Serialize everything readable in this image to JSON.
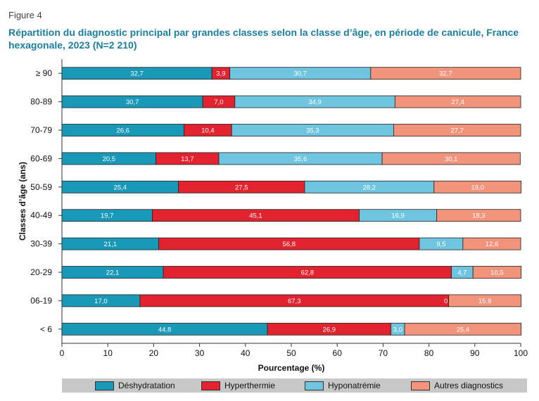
{
  "figure_label": "Figure 4",
  "chart_data": {
    "type": "bar",
    "orientation": "horizontal",
    "stacked": true,
    "title": "Répartition du diagnostic principal par grandes classes selon la classe d’âge, en période de canicule, France hexagonale, 2023 (N=2 210)",
    "xlabel": "Pourcentage (%)",
    "ylabel": "Classes d’âge (ans)",
    "xlim": [
      0,
      100
    ],
    "xticks": [
      "0",
      "10",
      "20",
      "30",
      "40",
      "50",
      "60",
      "70",
      "80",
      "90",
      "100"
    ],
    "categories": [
      "≥ 90",
      "80-89",
      "70-79",
      "60-69",
      "50-59",
      "40-49",
      "30-39",
      "20-29",
      "06-19",
      "< 6"
    ],
    "series": [
      {
        "name": "Déshydratation",
        "color": "#1a98b8",
        "values": [
          32.7,
          30.7,
          26.6,
          20.5,
          25.4,
          19.7,
          21.1,
          22.1,
          17.0,
          44.8
        ],
        "labels": [
          "32,7",
          "30,7",
          "26,6",
          "20,5",
          "25,4",
          "19,7",
          "21,1",
          "22,1",
          "17,0",
          "44,8"
        ]
      },
      {
        "name": "Hyperthermie",
        "color": "#e2222e",
        "values": [
          3.9,
          7.0,
          10.4,
          13.7,
          27.5,
          45.1,
          56.8,
          62.8,
          67.3,
          26.9
        ],
        "labels": [
          "3,9",
          "7,0",
          "10,4",
          "13,7",
          "27,5",
          "45,1",
          "56,8",
          "62,8",
          "67,3",
          "26,9"
        ]
      },
      {
        "name": "Hyponatrémie",
        "color": "#6fc5df",
        "values": [
          30.7,
          34.9,
          35.3,
          35.6,
          28.2,
          16.9,
          9.5,
          4.7,
          0.0,
          3.0
        ],
        "labels": [
          "30,7",
          "34,9",
          "35,3",
          "35,6",
          "28,2",
          "16,9",
          "9,5",
          "4,7",
          "0,0",
          "3,0"
        ]
      },
      {
        "name": "Autres diagnostics",
        "color": "#f2947c",
        "values": [
          32.7,
          27.4,
          27.7,
          30.1,
          19.0,
          18.3,
          12.6,
          10.5,
          15.8,
          25.4
        ],
        "labels": [
          "32,7",
          "27,4",
          "27,7",
          "30,1",
          "19,0",
          "18,3",
          "12,6",
          "10,5",
          "15,8",
          "25,4"
        ]
      }
    ],
    "legend_position": "bottom"
  }
}
